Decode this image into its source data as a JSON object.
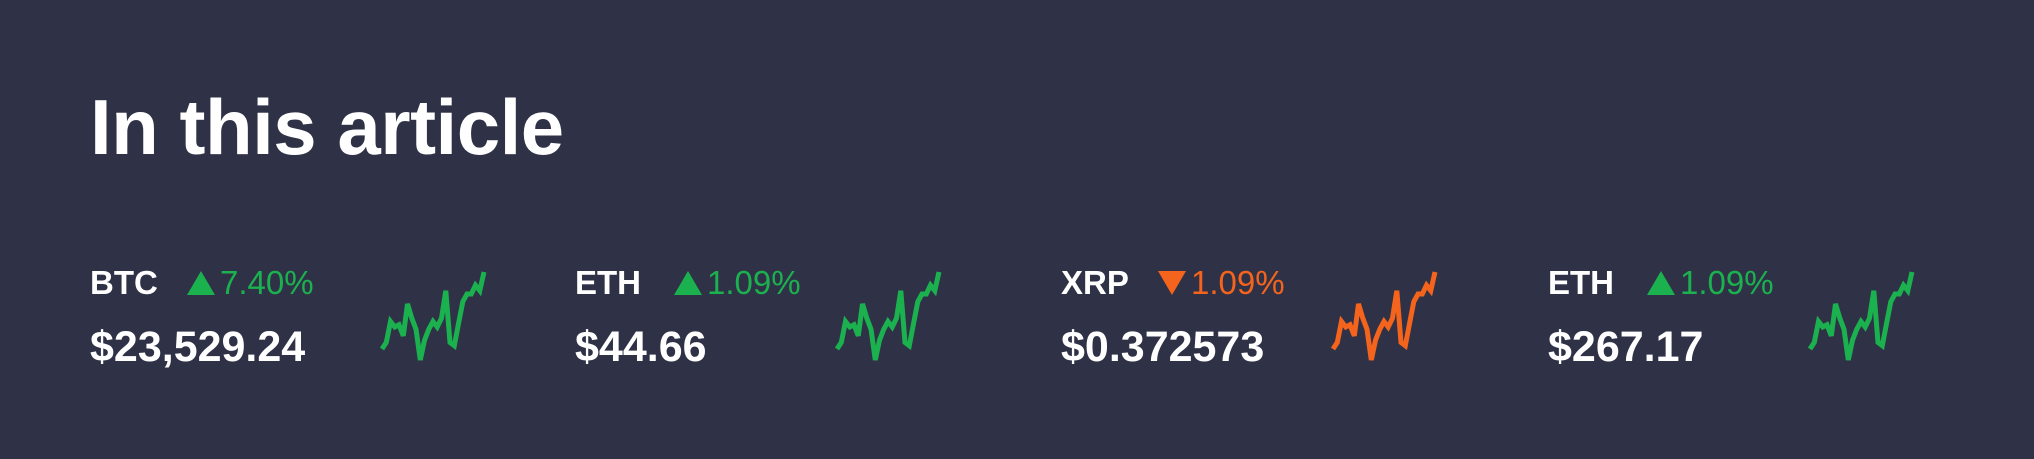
{
  "heading": "In this article",
  "tickers": [
    {
      "symbol": "BTC",
      "change": "7.40%",
      "direction": "up",
      "price": "$23,529.24",
      "color": "#1bb14f"
    },
    {
      "symbol": "ETH",
      "change": "1.09%",
      "direction": "up",
      "price": "$44.66",
      "color": "#1bb14f"
    },
    {
      "symbol": "XRP",
      "change": "1.09%",
      "direction": "down",
      "price": "$0.372573",
      "color": "#f4641c"
    },
    {
      "symbol": "ETH",
      "change": "1.09%",
      "direction": "up",
      "price": "$267.17",
      "color": "#1bb14f"
    }
  ],
  "sparkline": [
    2,
    8,
    27,
    22,
    24,
    14,
    43,
    30,
    20,
    -8,
    10,
    20,
    27,
    22,
    30,
    55,
    8,
    5,
    25,
    45,
    52,
    52,
    60,
    55,
    72
  ]
}
